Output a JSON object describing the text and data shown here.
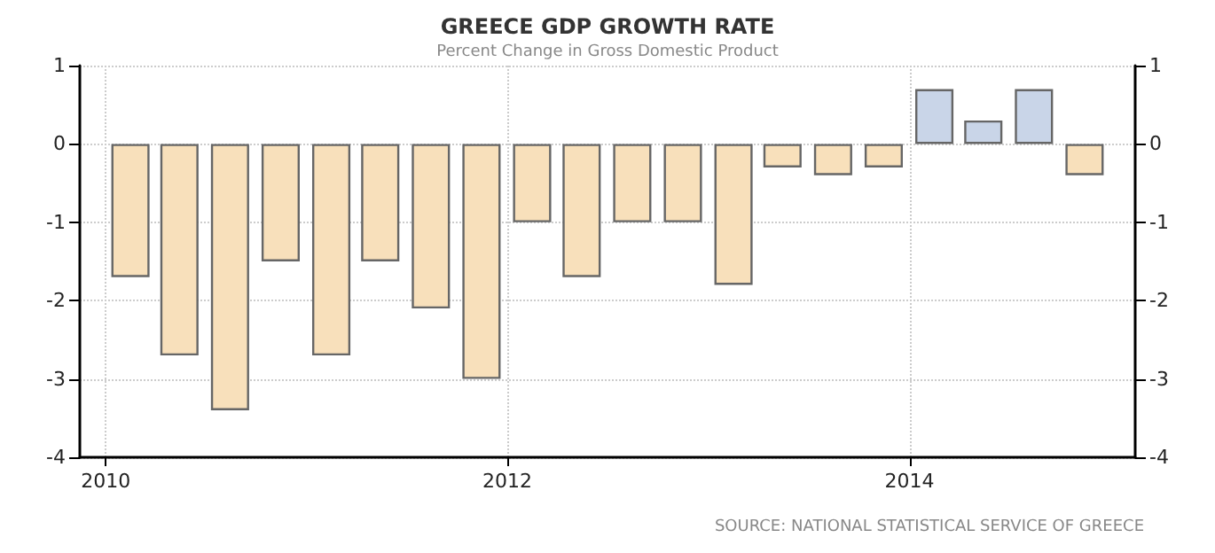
{
  "chart_data": {
    "type": "bar",
    "title": "GREECE GDP GROWTH RATE",
    "subtitle": "Percent Change in Gross Domestic Product",
    "x": [
      "2010-02-15",
      "2010-05-15",
      "2010-08-15",
      "2010-11-15",
      "2011-02-15",
      "2011-05-15",
      "2011-08-15",
      "2011-11-15",
      "2012-02-15",
      "2012-05-15",
      "2012-08-15",
      "2012-11-15",
      "2013-02-15",
      "2013-05-15",
      "2013-08-15",
      "2013-11-15",
      "2014-02-15",
      "2014-05-15",
      "2014-08-15",
      "2014-11-15"
    ],
    "values": [
      -1.7,
      -2.7,
      -3.4,
      -1.5,
      -2.7,
      -1.5,
      -2.1,
      -3.0,
      -1.0,
      -1.7,
      -1.0,
      -1.0,
      -1.8,
      -0.3,
      -0.4,
      -0.3,
      0.7,
      0.3,
      0.7,
      -0.4
    ],
    "colors": [
      "#f8e0bb",
      "#f8e0bb",
      "#f8e0bb",
      "#f8e0bb",
      "#f8e0bb",
      "#f8e0bb",
      "#f8e0bb",
      "#f8e0bb",
      "#f8e0bb",
      "#f8e0bb",
      "#f8e0bb",
      "#f8e0bb",
      "#f8e0bb",
      "#f8e0bb",
      "#f8e0bb",
      "#f8e0bb",
      "#c9d5e8",
      "#c9d5e8",
      "#c9d5e8",
      "#f8e0bb"
    ],
    "xlim": [
      "2009-11-15",
      "2015-02-15"
    ],
    "xticks": [
      "2010",
      "2012",
      "2014"
    ],
    "ylim": [
      -4,
      1
    ],
    "yticks": [
      -4,
      -3,
      -2,
      -1,
      0,
      1
    ],
    "y2lim": [
      -4,
      1
    ],
    "y2ticks": [
      -4,
      -3,
      -2,
      -1,
      0,
      1
    ],
    "grid": true,
    "annotations": [
      "SOURCE: NATIONAL STATISTICAL SERVICE OF GREECE"
    ]
  }
}
